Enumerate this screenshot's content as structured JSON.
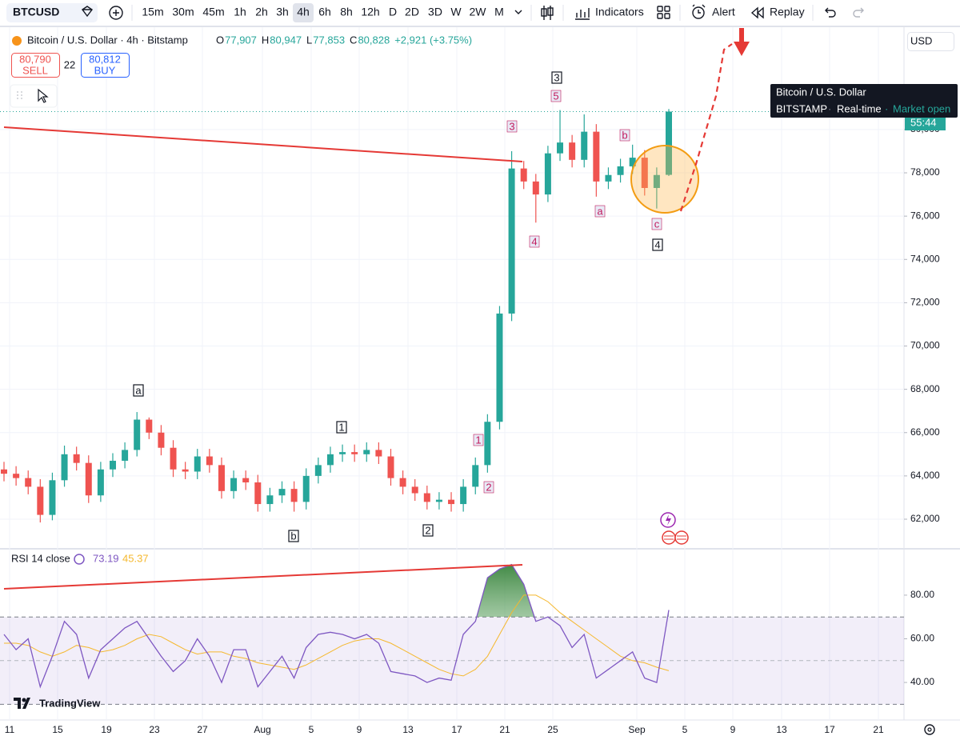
{
  "toolbar": {
    "symbol": "BTCUSD",
    "intervals": [
      "15m",
      "30m",
      "45m",
      "1h",
      "2h",
      "3h",
      "4h",
      "6h",
      "8h",
      "12h",
      "D",
      "2D",
      "3D",
      "W",
      "2W",
      "M"
    ],
    "active_interval": "4h",
    "indicators": "Indicators",
    "alert": "Alert",
    "replay": "Replay"
  },
  "header": {
    "title": "Bitcoin / U.S. Dollar · 4h · Bitstamp",
    "ohlc": [
      {
        "label": "O",
        "value": "77,907"
      },
      {
        "label": "H",
        "value": "80,947"
      },
      {
        "label": "L",
        "value": "77,853"
      },
      {
        "label": "C",
        "value": "80,828"
      }
    ],
    "change": "+2,921 (+3.75%)",
    "sell_price": "80,790",
    "sell": "SELL",
    "spread": "22",
    "buy_price": "80,812",
    "buy": "BUY"
  },
  "currency": "USD",
  "tooltip": {
    "name": "Bitcoin / U.S. Dollar",
    "exchange": "BITSTAMP",
    "feed": "Real-time",
    "status": "Market open"
  },
  "countdown": "55:44",
  "branding": "TradingView",
  "chart_data": [
    {
      "type": "candlestick",
      "up_color": "#26a69a",
      "down_color": "#ef5350",
      "open": [
        64300,
        64100,
        63900,
        63500,
        62200,
        63800,
        65000,
        64600,
        63100,
        64300,
        64700,
        65200,
        66600,
        66000,
        65300,
        64300,
        64200,
        64900,
        64500,
        63300,
        63900,
        63700,
        62700,
        63100,
        63400,
        62800,
        64000,
        64500,
        65000,
        65100,
        65000,
        65200,
        64900,
        63900,
        63500,
        63200,
        62800,
        62900,
        62700,
        63500,
        64500,
        66500,
        71500,
        78200,
        77600,
        77000,
        78900,
        79400,
        78600,
        79900,
        77600,
        77900,
        78300,
        78700,
        77300,
        77907
      ],
      "high": [
        64650,
        64450,
        64250,
        63850,
        64150,
        65400,
        65350,
        64950,
        64650,
        65050,
        65550,
        66950,
        66700,
        66350,
        65650,
        64650,
        65250,
        65250,
        64850,
        64250,
        64250,
        64050,
        63450,
        63750,
        63750,
        64350,
        64850,
        65350,
        65450,
        65450,
        65550,
        65550,
        65250,
        64250,
        63850,
        63550,
        63250,
        63250,
        63850,
        64850,
        66850,
        71850,
        79000,
        78550,
        77950,
        79250,
        80900,
        79750,
        80700,
        80250,
        78250,
        78650,
        79300,
        79050,
        78250,
        80947
      ],
      "low": [
        63750,
        63550,
        63150,
        61850,
        61950,
        63500,
        64250,
        62750,
        62800,
        63950,
        64350,
        64900,
        65700,
        64950,
        63950,
        63850,
        63850,
        64150,
        62950,
        62950,
        63350,
        62350,
        62350,
        62750,
        62350,
        62450,
        63650,
        64150,
        64650,
        64650,
        64650,
        64550,
        63550,
        63150,
        62850,
        62450,
        62450,
        62350,
        62350,
        63150,
        64150,
        66150,
        71150,
        77250,
        75700,
        76650,
        78550,
        78250,
        78250,
        76900,
        77250,
        77550,
        77950,
        76950,
        76350,
        77853
      ],
      "close": [
        64100,
        63900,
        63500,
        62200,
        63800,
        65000,
        64600,
        63100,
        64300,
        64700,
        65200,
        66600,
        66000,
        65300,
        64300,
        64200,
        64900,
        64500,
        63300,
        63900,
        63700,
        62700,
        63100,
        63400,
        62800,
        64000,
        64500,
        65000,
        65100,
        65000,
        65200,
        64900,
        63900,
        63500,
        63200,
        62800,
        62900,
        62700,
        63500,
        64500,
        66500,
        71500,
        78200,
        77600,
        77000,
        78900,
        79400,
        78600,
        79900,
        77600,
        77900,
        78300,
        78700,
        77300,
        77900,
        80828
      ],
      "ylim": [
        60670,
        84690
      ],
      "yticks": [
        {
          "value": 62000,
          "label": "62,000"
        },
        {
          "value": 64000,
          "label": "64,000"
        },
        {
          "value": 66000,
          "label": "66,000"
        },
        {
          "value": 68000,
          "label": "68,000"
        },
        {
          "value": 70000,
          "label": "70,000"
        },
        {
          "value": 72000,
          "label": "72,000"
        },
        {
          "value": 74000,
          "label": "74,000"
        },
        {
          "value": 76000,
          "label": "76,000"
        },
        {
          "value": 78000,
          "label": "78,000"
        },
        {
          "value": 80000,
          "label": "80,000"
        }
      ],
      "grid": true,
      "annotations": [
        "3",
        "5",
        "3",
        "b",
        "a",
        "4",
        "c",
        "4",
        "a",
        "1",
        "1",
        "2",
        "b",
        "2"
      ],
      "x_labels": [
        "11",
        "15",
        "19",
        "23",
        "27",
        "Aug",
        "5",
        "9",
        "13",
        "17",
        "21",
        "25",
        "Sep",
        "5",
        "9",
        "13",
        "17",
        "21"
      ]
    },
    {
      "type": "line",
      "title": "RSI 14 close",
      "series": [
        {
          "color": "#7e57c2",
          "values": [
            62,
            55,
            60,
            38,
            52,
            68,
            62,
            42,
            55,
            60,
            65,
            68,
            60,
            52,
            45,
            50,
            60,
            52,
            40,
            55,
            55,
            38,
            45,
            52,
            42,
            56,
            62,
            63,
            62,
            60,
            62,
            58,
            45,
            44,
            43,
            40,
            42,
            41,
            62,
            68,
            88,
            92,
            94,
            85,
            68,
            70,
            66,
            56,
            62,
            42,
            46,
            50,
            54,
            42,
            40,
            73.19
          ]
        },
        {
          "color": "#f5b82e",
          "values": [
            58,
            58,
            57,
            54,
            52,
            54,
            57,
            56,
            54,
            55,
            57,
            60,
            62,
            61,
            58,
            55,
            53,
            54,
            54,
            52,
            51,
            49,
            48,
            47,
            46,
            48,
            51,
            54,
            57,
            59,
            60,
            60,
            58,
            55,
            52,
            49,
            46,
            44,
            43,
            46,
            52,
            62,
            72,
            80,
            80,
            77,
            72,
            68,
            64,
            60,
            56,
            52,
            50,
            49,
            47,
            45.37
          ]
        }
      ],
      "ylim": [
        22.8,
        100.5
      ],
      "yticks": [
        {
          "value": 40,
          "label": "40.00"
        },
        {
          "value": 60,
          "label": "60.00"
        },
        {
          "value": 80,
          "label": "80.00"
        }
      ],
      "band": [
        30,
        70
      ],
      "midline": 50,
      "overbought_fill": "#4caf50"
    }
  ]
}
